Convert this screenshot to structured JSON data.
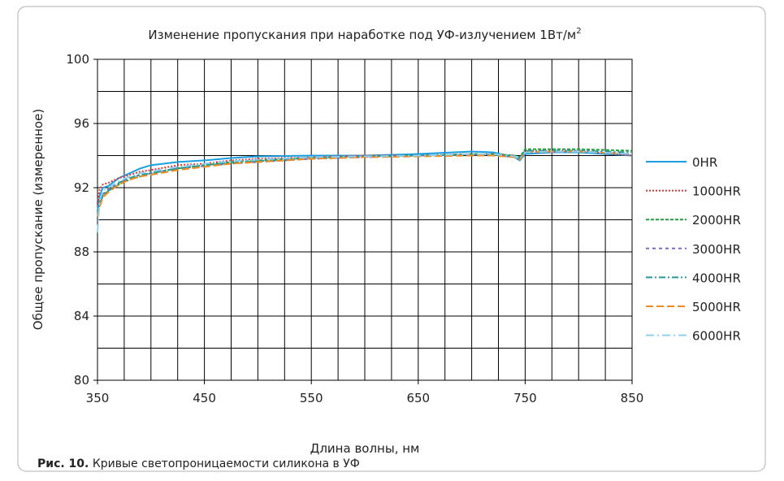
{
  "chart_data": {
    "type": "line",
    "title": "Изменение пропускания при наработке под УФ-излучением 1Вт/м",
    "title_superscript": "2",
    "x_label": "Длина волны, нм",
    "y_label": "Общее пропускание (измеренное)",
    "caption_label": "Рис. 10.",
    "caption_text": "Кривые светопроницаемости силикона в УФ",
    "x": [
      350,
      352,
      355,
      360,
      370,
      380,
      390,
      400,
      425,
      450,
      475,
      500,
      550,
      600,
      650,
      700,
      720,
      740,
      745,
      750,
      775,
      800,
      850
    ],
    "xlim": [
      350,
      850
    ],
    "xticks": [
      350,
      450,
      550,
      650,
      750,
      850
    ],
    "xgrid": [
      375,
      400,
      425,
      475,
      500,
      525,
      575,
      600,
      625,
      675,
      700,
      725,
      775,
      800,
      825
    ],
    "ylim": [
      80,
      100
    ],
    "yticks": [
      80,
      84,
      88,
      92,
      96,
      100
    ],
    "ygrid": [
      82,
      86,
      90,
      94,
      98
    ],
    "grid": true,
    "legend": "right",
    "series": [
      {
        "name": "0HR",
        "color": "#1a9ee0",
        "dash": "none",
        "values": [
          90.5,
          91.5,
          92.0,
          92.1,
          92.6,
          92.9,
          93.2,
          93.4,
          93.6,
          93.7,
          93.85,
          93.95,
          94.0,
          94.0,
          94.1,
          94.25,
          94.2,
          93.9,
          93.7,
          94.1,
          94.2,
          94.2,
          94.0
        ]
      },
      {
        "name": "1000HR",
        "color": "#e03030",
        "dash": "2 2",
        "values": [
          91.0,
          91.9,
          92.2,
          92.3,
          92.6,
          92.8,
          93.0,
          93.1,
          93.4,
          93.5,
          93.7,
          93.8,
          93.9,
          94.0,
          94.0,
          94.1,
          94.1,
          94.0,
          93.8,
          94.3,
          94.3,
          94.3,
          94.0
        ]
      },
      {
        "name": "2000HR",
        "color": "#22a040",
        "dash": "4 2",
        "values": [
          90.5,
          91.0,
          91.5,
          91.8,
          92.2,
          92.5,
          92.7,
          92.9,
          93.2,
          93.4,
          93.6,
          93.7,
          93.85,
          93.95,
          94.0,
          94.1,
          94.1,
          94.0,
          93.9,
          94.4,
          94.4,
          94.4,
          94.3
        ]
      },
      {
        "name": "3000HR",
        "color": "#7a6cc8",
        "dash": "4 4",
        "values": [
          90.4,
          91.0,
          91.6,
          91.9,
          92.3,
          92.6,
          92.8,
          92.9,
          93.2,
          93.35,
          93.5,
          93.6,
          93.8,
          93.9,
          94.0,
          94.05,
          94.05,
          93.9,
          93.8,
          94.2,
          94.2,
          94.3,
          94.1
        ]
      },
      {
        "name": "4000HR",
        "color": "#2a9a90",
        "dash": "8 3 2 3",
        "values": [
          90.3,
          90.9,
          91.5,
          91.8,
          92.3,
          92.6,
          92.8,
          92.9,
          93.2,
          93.4,
          93.55,
          93.65,
          93.85,
          93.95,
          94.0,
          94.05,
          94.05,
          93.95,
          93.85,
          94.3,
          94.3,
          94.3,
          94.2
        ]
      },
      {
        "name": "5000HR",
        "color": "#f08a24",
        "dash": "9 4",
        "values": [
          90.2,
          90.8,
          91.4,
          91.7,
          92.2,
          92.5,
          92.7,
          92.8,
          93.1,
          93.3,
          93.5,
          93.6,
          93.8,
          93.9,
          93.95,
          94.0,
          94.0,
          93.9,
          93.75,
          94.2,
          94.25,
          94.25,
          94.1
        ]
      },
      {
        "name": "6000HR",
        "color": "#8fd0f0",
        "dash": "10 4 2 4",
        "values": [
          89.2,
          91.2,
          91.8,
          92.0,
          92.4,
          92.7,
          92.9,
          93.0,
          93.3,
          93.5,
          93.65,
          93.75,
          93.9,
          93.95,
          94.0,
          94.1,
          94.1,
          93.95,
          93.8,
          94.2,
          94.25,
          94.25,
          94.1
        ]
      }
    ]
  }
}
